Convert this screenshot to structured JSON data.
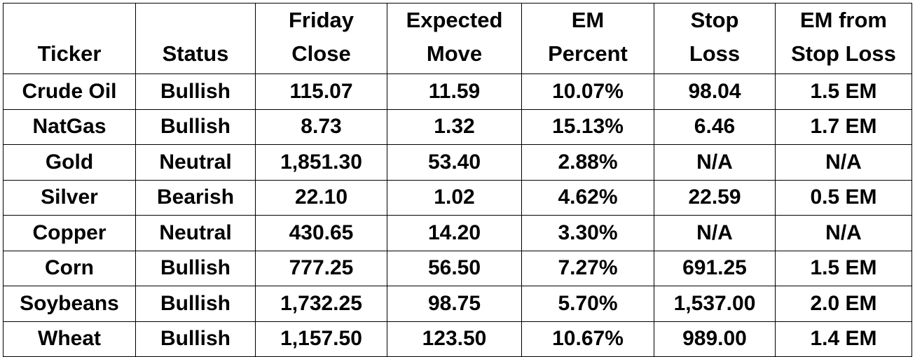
{
  "table": {
    "headers": [
      [
        "Ticker"
      ],
      [
        "Status"
      ],
      [
        "Friday",
        "Close"
      ],
      [
        "Expected",
        "Move"
      ],
      [
        "EM",
        "Percent"
      ],
      [
        "Stop",
        "Loss"
      ],
      [
        "EM from",
        "Stop Loss"
      ]
    ],
    "rows": [
      [
        "Crude Oil",
        "Bullish",
        "115.07",
        "11.59",
        "10.07%",
        "98.04",
        "1.5 EM"
      ],
      [
        "NatGas",
        "Bullish",
        "8.73",
        "1.32",
        "15.13%",
        "6.46",
        "1.7 EM"
      ],
      [
        "Gold",
        "Neutral",
        "1,851.30",
        "53.40",
        "2.88%",
        "N/A",
        "N/A"
      ],
      [
        "Silver",
        "Bearish",
        "22.10",
        "1.02",
        "4.62%",
        "22.59",
        "0.5 EM"
      ],
      [
        "Copper",
        "Neutral",
        "430.65",
        "14.20",
        "3.30%",
        "N/A",
        "N/A"
      ],
      [
        "Corn",
        "Bullish",
        "777.25",
        "56.50",
        "7.27%",
        "691.25",
        "1.5 EM"
      ],
      [
        "Soybeans",
        "Bullish",
        "1,732.25",
        "98.75",
        "5.70%",
        "1,537.00",
        "2.0 EM"
      ],
      [
        "Wheat",
        "Bullish",
        "1,157.50",
        "123.50",
        "10.67%",
        "989.00",
        "1.4 EM"
      ]
    ]
  }
}
